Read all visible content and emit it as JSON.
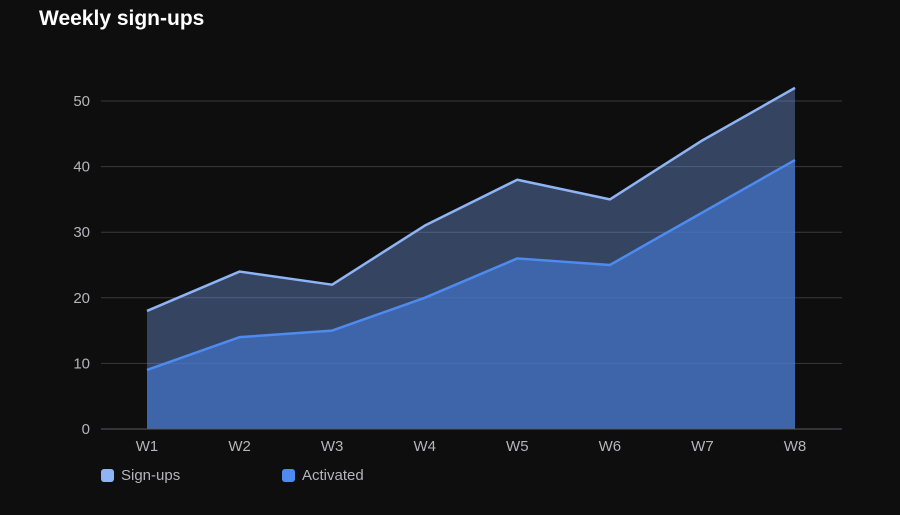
{
  "chart_data": {
    "type": "area",
    "title": "Weekly sign-ups",
    "xlabel": "",
    "ylabel": "",
    "categories": [
      "W1",
      "W2",
      "W3",
      "W4",
      "W5",
      "W6",
      "W7",
      "W8"
    ],
    "series": [
      {
        "name": "Sign-ups",
        "values": [
          18,
          24,
          22,
          31,
          38,
          35,
          44,
          52
        ],
        "color": "#8fb4f5"
      },
      {
        "name": "Activated",
        "values": [
          9,
          14,
          15,
          20,
          26,
          25,
          33,
          41
        ],
        "color": "#4d8bf0"
      }
    ],
    "ylim": [
      0,
      55
    ],
    "yticks": [
      0,
      10,
      20,
      30,
      40,
      50
    ],
    "grid": true,
    "legend": "bottom-left",
    "stacked": false
  },
  "colors": {
    "background": "#0e0e0f",
    "grid": "#3a3a3e",
    "axis": "#5a5a60",
    "tick_text": "#b4b4bb",
    "title": "#ffffff"
  }
}
